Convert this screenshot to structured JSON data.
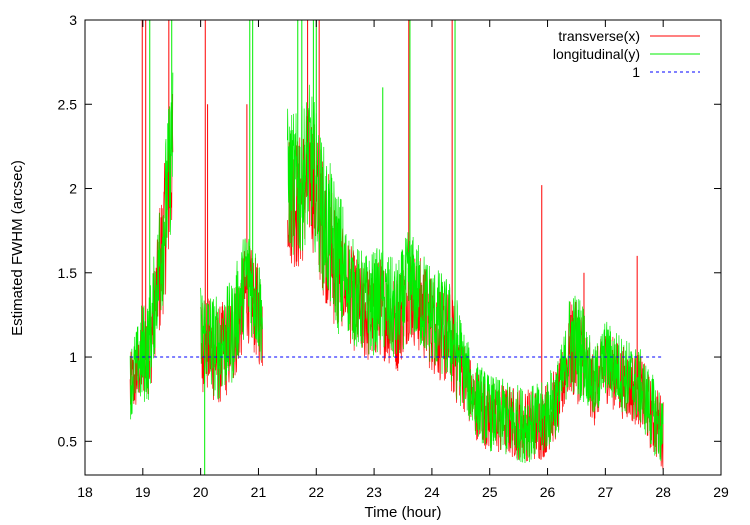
{
  "chart_data": {
    "type": "line",
    "title": "",
    "xlabel": "Time (hour)",
    "ylabel": "Estimated FWHM (arcsec)",
    "xlim": [
      18,
      29
    ],
    "ylim": [
      0.3,
      3
    ],
    "xticks": [
      18,
      19,
      20,
      21,
      22,
      23,
      24,
      25,
      26,
      27,
      28,
      29
    ],
    "yticks": [
      0.5,
      1,
      1.5,
      2,
      2.5,
      3
    ],
    "ytick_labels": [
      "0.5",
      "1",
      "1.5",
      "2",
      "2.5",
      "3"
    ],
    "grid": false,
    "legend_position": "top-right",
    "series": [
      {
        "name": "transverse(x)",
        "color": "#ff0000",
        "style": "solid",
        "segments": [
          [
            18.78,
            19.52
          ],
          [
            20.0,
            21.07
          ],
          [
            21.5,
            24.7
          ],
          [
            24.7,
            26.2
          ],
          [
            26.2,
            26.8
          ],
          [
            26.8,
            28.0
          ]
        ],
        "trend": [
          [
            18.78,
            0.8
          ],
          [
            18.95,
            0.95
          ],
          [
            19.1,
            1.0
          ],
          [
            19.25,
            1.4
          ],
          [
            19.4,
            1.8
          ],
          [
            19.52,
            2.2
          ],
          [
            20.0,
            1.1
          ],
          [
            20.3,
            1.0
          ],
          [
            20.55,
            1.1
          ],
          [
            20.8,
            1.4
          ],
          [
            21.07,
            1.2
          ],
          [
            21.5,
            2.0
          ],
          [
            21.7,
            1.9
          ],
          [
            21.9,
            2.1
          ],
          [
            22.1,
            1.8
          ],
          [
            22.4,
            1.5
          ],
          [
            22.7,
            1.3
          ],
          [
            22.9,
            1.25
          ],
          [
            23.1,
            1.3
          ],
          [
            23.4,
            1.2
          ],
          [
            23.6,
            1.4
          ],
          [
            23.8,
            1.3
          ],
          [
            24.0,
            1.2
          ],
          [
            24.3,
            1.1
          ],
          [
            24.5,
            0.95
          ],
          [
            24.7,
            0.75
          ],
          [
            25.0,
            0.65
          ],
          [
            25.3,
            0.62
          ],
          [
            25.6,
            0.6
          ],
          [
            25.9,
            0.6
          ],
          [
            26.2,
            0.75
          ],
          [
            26.4,
            1.05
          ],
          [
            26.6,
            1.0
          ],
          [
            26.8,
            0.8
          ],
          [
            27.0,
            0.95
          ],
          [
            27.3,
            0.85
          ],
          [
            27.6,
            0.8
          ],
          [
            27.8,
            0.65
          ],
          [
            28.0,
            0.55
          ]
        ],
        "spikes": [
          [
            18.99,
            3.0
          ],
          [
            19.05,
            3.0
          ],
          [
            19.45,
            3.0
          ],
          [
            20.08,
            3.0
          ],
          [
            20.12,
            2.5
          ],
          [
            20.8,
            2.5
          ],
          [
            21.85,
            3.0
          ],
          [
            22.05,
            3.0
          ],
          [
            23.6,
            3.0
          ],
          [
            24.35,
            3.0
          ],
          [
            25.9,
            2.02
          ],
          [
            26.63,
            1.5
          ],
          [
            27.55,
            1.6
          ]
        ]
      },
      {
        "name": "longitudinal(y)",
        "color": "#00ee00",
        "style": "solid",
        "trend": [
          [
            18.78,
            0.85
          ],
          [
            18.95,
            1.0
          ],
          [
            19.1,
            1.05
          ],
          [
            19.25,
            1.45
          ],
          [
            19.4,
            1.9
          ],
          [
            19.52,
            2.3
          ],
          [
            20.0,
            1.15
          ],
          [
            20.3,
            1.05
          ],
          [
            20.55,
            1.15
          ],
          [
            20.8,
            1.5
          ],
          [
            21.07,
            1.25
          ],
          [
            21.5,
            2.05
          ],
          [
            21.7,
            2.0
          ],
          [
            21.9,
            2.2
          ],
          [
            22.1,
            1.85
          ],
          [
            22.4,
            1.55
          ],
          [
            22.7,
            1.35
          ],
          [
            22.9,
            1.3
          ],
          [
            23.1,
            1.35
          ],
          [
            23.4,
            1.25
          ],
          [
            23.6,
            1.45
          ],
          [
            23.8,
            1.35
          ],
          [
            24.0,
            1.25
          ],
          [
            24.3,
            1.15
          ],
          [
            24.5,
            1.0
          ],
          [
            24.7,
            0.78
          ],
          [
            25.0,
            0.67
          ],
          [
            25.3,
            0.63
          ],
          [
            25.6,
            0.6
          ],
          [
            25.9,
            0.62
          ],
          [
            26.2,
            0.78
          ],
          [
            26.4,
            1.1
          ],
          [
            26.6,
            1.05
          ],
          [
            26.8,
            0.82
          ],
          [
            27.0,
            1.0
          ],
          [
            27.3,
            0.9
          ],
          [
            27.6,
            0.82
          ],
          [
            27.8,
            0.68
          ],
          [
            28.0,
            0.55
          ]
        ],
        "spikes": [
          [
            19.12,
            3.0
          ],
          [
            19.5,
            3.0
          ],
          [
            20.85,
            3.0
          ],
          [
            20.9,
            3.0
          ],
          [
            21.68,
            3.0
          ],
          [
            21.75,
            3.0
          ],
          [
            21.95,
            3.0
          ],
          [
            22.0,
            3.0
          ],
          [
            23.15,
            2.6
          ],
          [
            23.62,
            3.0
          ],
          [
            24.4,
            3.0
          ],
          [
            20.07,
            0.3
          ]
        ]
      },
      {
        "name": "1",
        "color": "#0000ff",
        "style": "dashed",
        "x": [
          18.78,
          28.0
        ],
        "y": [
          1,
          1
        ]
      }
    ]
  }
}
